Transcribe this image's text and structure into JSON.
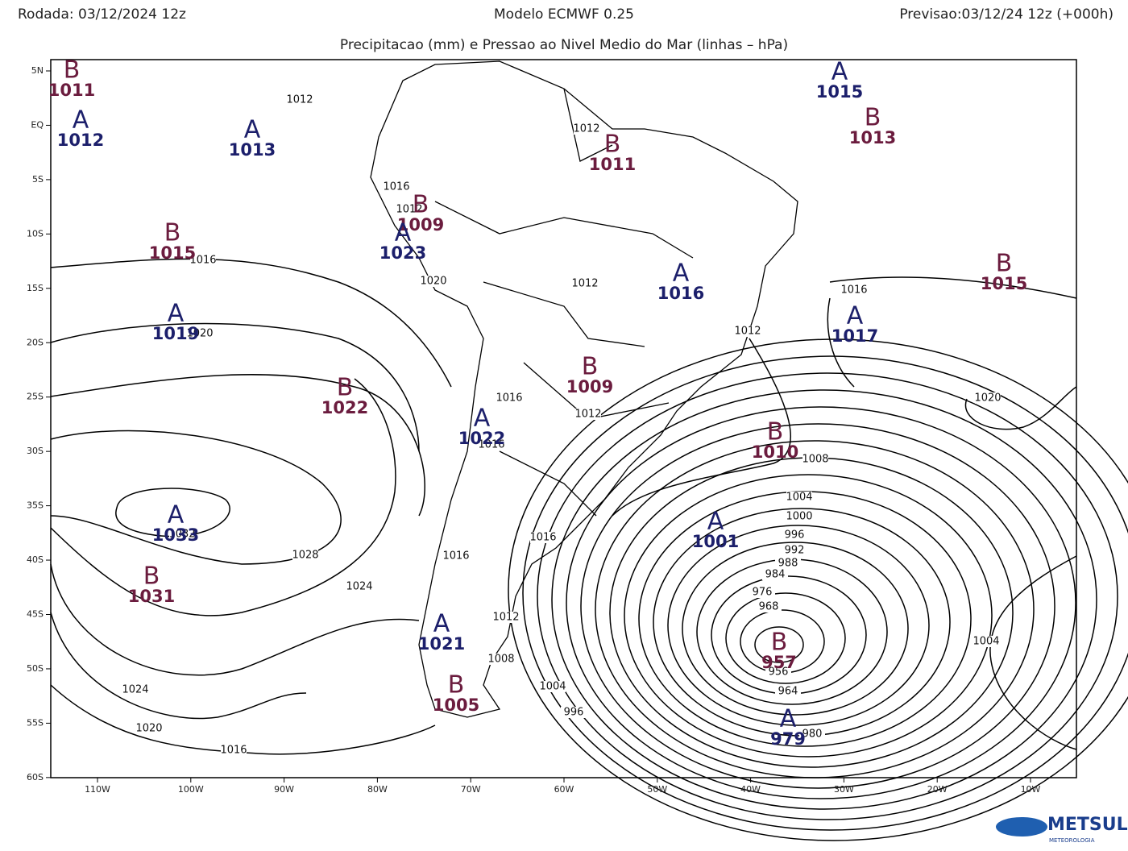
{
  "header": {
    "left": "Rodada: 03/12/2024 12z",
    "center": "Modelo ECMWF 0.25",
    "right": "Previsao:03/12/24 12z (+000h)",
    "subtitle": "Precipitacao (mm) e Pressao ao Nivel Medio do Mar (linhas – hPa)"
  },
  "map": {
    "lon_ticks": [
      {
        "value": -110,
        "label": "110W"
      },
      {
        "value": -100,
        "label": "100W"
      },
      {
        "value": -90,
        "label": "90W"
      },
      {
        "value": -80,
        "label": "80W"
      },
      {
        "value": -70,
        "label": "70W"
      },
      {
        "value": -60,
        "label": "60W"
      },
      {
        "value": -50,
        "label": "50W"
      },
      {
        "value": -40,
        "label": "40W"
      },
      {
        "value": -30,
        "label": "30W"
      },
      {
        "value": -20,
        "label": "20W"
      },
      {
        "value": -10,
        "label": "10W"
      }
    ],
    "lat_ticks": [
      {
        "value": 5,
        "label": "5N"
      },
      {
        "value": 0,
        "label": "EQ"
      },
      {
        "value": -5,
        "label": "5S"
      },
      {
        "value": -10,
        "label": "10S"
      },
      {
        "value": -15,
        "label": "15S"
      },
      {
        "value": -20,
        "label": "20S"
      },
      {
        "value": -25,
        "label": "25S"
      },
      {
        "value": -30,
        "label": "30S"
      },
      {
        "value": -35,
        "label": "35S"
      },
      {
        "value": -40,
        "label": "40S"
      },
      {
        "value": -45,
        "label": "45S"
      },
      {
        "value": -50,
        "label": "50S"
      },
      {
        "value": -55,
        "label": "55S"
      },
      {
        "value": -60,
        "label": "60S"
      }
    ],
    "pressure_centers": [
      {
        "type": "B",
        "value": 1011
      },
      {
        "type": "A",
        "value": 1012
      },
      {
        "type": "A",
        "value": 1013
      },
      {
        "type": "B",
        "value": 1011
      },
      {
        "type": "A",
        "value": 1015
      },
      {
        "type": "B",
        "value": 1013
      },
      {
        "type": "B",
        "value": 1009
      },
      {
        "type": "A",
        "value": 1023
      },
      {
        "type": "B",
        "value": 1015
      },
      {
        "type": "A",
        "value": 1016
      },
      {
        "type": "B",
        "value": 1015
      },
      {
        "type": "A",
        "value": 1017
      },
      {
        "type": "A",
        "value": 1019
      },
      {
        "type": "B",
        "value": 1022
      },
      {
        "type": "B",
        "value": 1009
      },
      {
        "type": "B",
        "value": 1010
      },
      {
        "type": "A",
        "value": 1022
      },
      {
        "type": "A",
        "value": 1033
      },
      {
        "type": "B",
        "value": 1031
      },
      {
        "type": "A",
        "value": 1001
      },
      {
        "type": "A",
        "value": 1021
      },
      {
        "type": "B",
        "value": 957
      },
      {
        "type": "B",
        "value": 1005
      },
      {
        "type": "A",
        "value": 979
      }
    ],
    "isobar_labels": [
      1012,
      1012,
      1016,
      1012,
      1016,
      1020,
      1012,
      1020,
      1012,
      1016,
      1016,
      1012,
      1016,
      1020,
      1008,
      1004,
      1000,
      996,
      992,
      988,
      984,
      976,
      968,
      956,
      964,
      980,
      1004,
      1028,
      1024,
      1024,
      1020,
      1016,
      1016,
      1016,
      1012,
      1008,
      1004,
      996,
      1032
    ]
  },
  "logo": {
    "name": "METSUL",
    "tagline": "METEOROLOGIA"
  }
}
